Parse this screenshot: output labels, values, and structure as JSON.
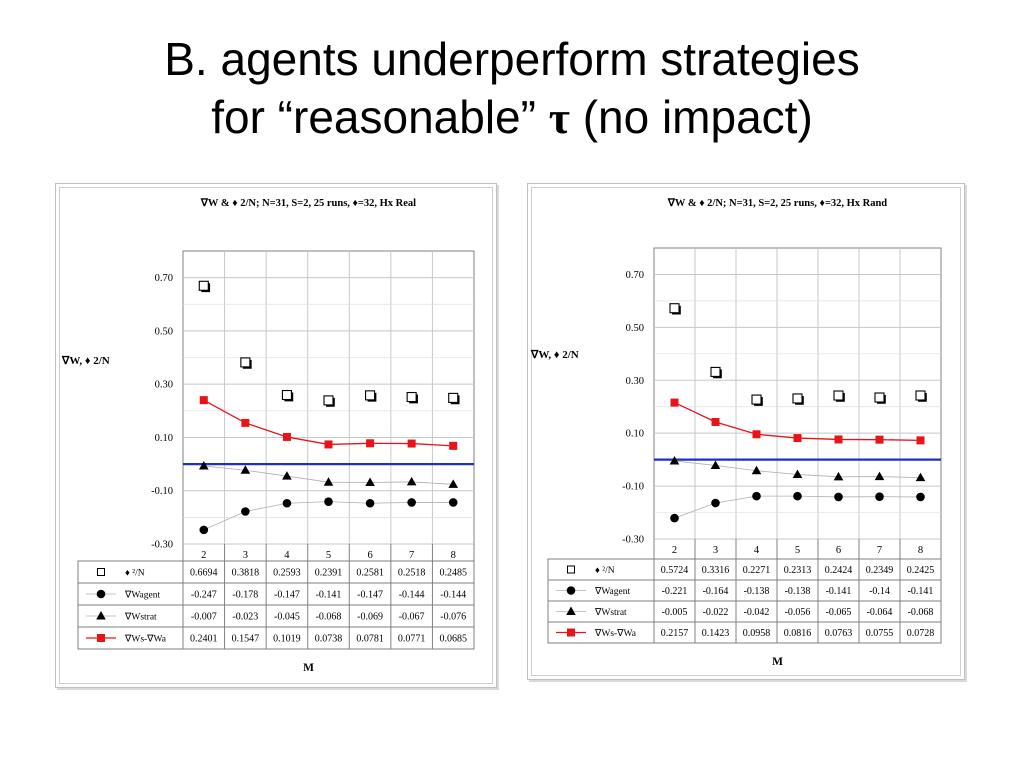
{
  "slide": {
    "title_line1": "B. agents underperform strategies",
    "title_line2_pre": "for “reasonable” ",
    "title_line2_symbol": "τ",
    "title_line2_post": " (no impact)"
  },
  "chart_data": [
    {
      "type": "scatter",
      "title": "∇W & ♦ 2/N; N=31, S=2, 25 runs, ♦=32, Hx Real",
      "ylabel": "∇W, ♦ 2/N",
      "xlabel": "M",
      "categories": [
        "2",
        "3",
        "4",
        "5",
        "6",
        "7",
        "8"
      ],
      "ylim": [
        -0.3,
        0.8
      ],
      "yticks": [
        "0.70",
        "0.50",
        "0.30",
        "0.10",
        "-0.10",
        "-0.30"
      ],
      "reference_line": 0.0,
      "reference_color": "#1f2fbf",
      "series": [
        {
          "name": "♦ ²/N",
          "marker": "open-square",
          "color": "#000000",
          "values": [
            "0.6694",
            "0.3818",
            "0.2593",
            "0.2391",
            "0.2581",
            "0.2518",
            "0.2485"
          ]
        },
        {
          "name": "∇Wagent",
          "marker": "circle",
          "color": "#000000",
          "values": [
            "-0.247",
            "-0.178",
            "-0.147",
            "-0.141",
            "-0.147",
            "-0.144",
            "-0.144"
          ]
        },
        {
          "name": "∇Wstrat",
          "marker": "triangle",
          "color": "#000000",
          "values": [
            "-0.007",
            "-0.023",
            "-0.045",
            "-0.068",
            "-0.069",
            "-0.067",
            "-0.076"
          ]
        },
        {
          "name": "∇Ws-∇Wa",
          "marker": "square",
          "color": "#e8141a",
          "values": [
            "0.2401",
            "0.1547",
            "0.1019",
            "0.0738",
            "0.0781",
            "0.0771",
            "0.0685"
          ]
        }
      ]
    },
    {
      "type": "scatter",
      "title": "∇W & ♦ 2/N; N=31, S=2, 25 runs, ♦=32, Hx Rand",
      "ylabel": "∇W, ♦ 2/N",
      "xlabel": "M",
      "categories": [
        "2",
        "3",
        "4",
        "5",
        "6",
        "7",
        "8"
      ],
      "ylim": [
        -0.3,
        0.8
      ],
      "yticks": [
        "0.70",
        "0.50",
        "0.30",
        "0.10",
        "-0.10",
        "-0.30"
      ],
      "reference_line": 0.0,
      "reference_color": "#1f2fbf",
      "series": [
        {
          "name": "♦ ²/N",
          "marker": "open-square",
          "color": "#000000",
          "values": [
            "0.5724",
            "0.3316",
            "0.2271",
            "0.2313",
            "0.2424",
            "0.2349",
            "0.2425"
          ]
        },
        {
          "name": "∇Wagent",
          "marker": "circle",
          "color": "#000000",
          "values": [
            "-0.221",
            "-0.164",
            "-0.138",
            "-0.138",
            "-0.141",
            "-0.14",
            "-0.141"
          ]
        },
        {
          "name": "∇Wstrat",
          "marker": "triangle",
          "color": "#000000",
          "values": [
            "-0.005",
            "-0.022",
            "-0.042",
            "-0.056",
            "-0.065",
            "-0.064",
            "-0.068"
          ]
        },
        {
          "name": "∇Ws-∇Wa",
          "marker": "square",
          "color": "#e8141a",
          "values": [
            "0.2157",
            "0.1423",
            "0.0958",
            "0.0816",
            "0.0763",
            "0.0755",
            "0.0728"
          ]
        }
      ]
    }
  ]
}
